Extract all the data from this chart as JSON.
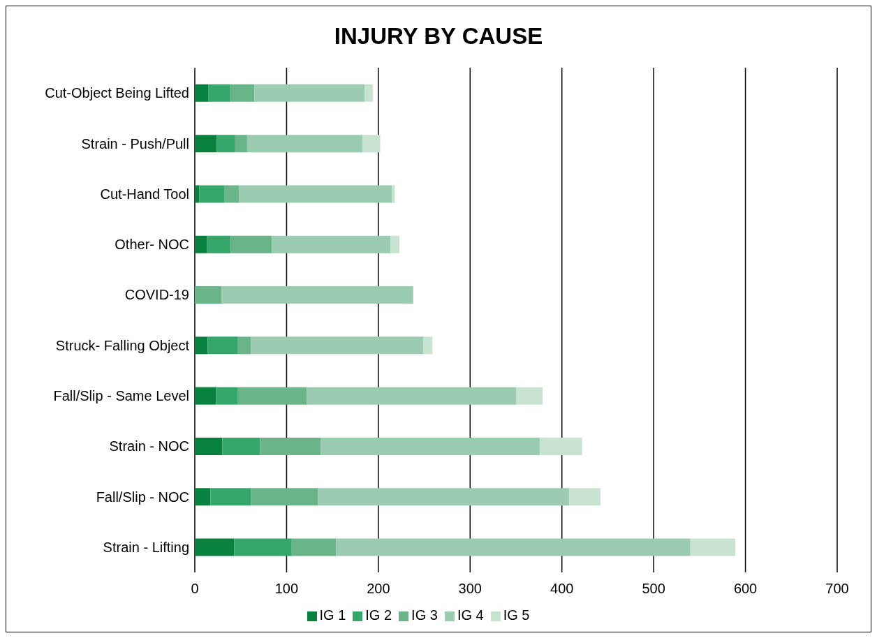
{
  "chart_data": {
    "type": "bar",
    "title": "INJURY BY CAUSE",
    "orientation": "horizontal",
    "stacked": true,
    "categories": [
      "Cut-Object Being Lifted",
      "Strain - Push/Pull",
      "Cut-Hand Tool",
      "Other- NOC",
      "COVID-19",
      "Struck- Falling Object",
      "Fall/Slip - Same Level",
      "Strain - NOC",
      "Fall/Slip - NOC",
      "Strain - Lifting"
    ],
    "series": [
      {
        "name": "IG 1",
        "color": "#08803e",
        "values": [
          15,
          24,
          5,
          13,
          0,
          14,
          23,
          30,
          17,
          43
        ]
      },
      {
        "name": "IG 2",
        "color": "#36a76a",
        "values": [
          24,
          20,
          27,
          26,
          0,
          33,
          24,
          41,
          44,
          62
        ]
      },
      {
        "name": "IG 3",
        "color": "#6ab48a",
        "values": [
          26,
          13,
          16,
          45,
          29,
          14,
          75,
          66,
          73,
          49
        ]
      },
      {
        "name": "IG 4",
        "color": "#9bcbb0",
        "values": [
          120,
          126,
          167,
          129,
          209,
          188,
          228,
          239,
          274,
          386
        ]
      },
      {
        "name": "IG 5",
        "color": "#c9e3d3",
        "values": [
          9,
          19,
          3,
          10,
          0,
          10,
          29,
          46,
          34,
          49
        ]
      }
    ],
    "xlim": [
      0,
      700
    ],
    "xticks": [
      0,
      100,
      200,
      300,
      400,
      500,
      600,
      700
    ],
    "grid": "x",
    "legend": "bottom"
  }
}
